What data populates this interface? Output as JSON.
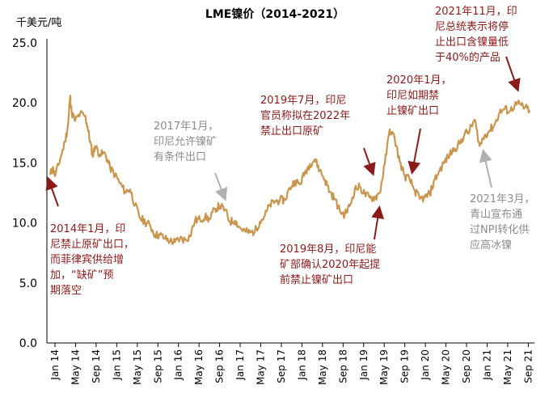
{
  "chart_data": {
    "type": "line",
    "title": "LME镍价（2014-2021）",
    "ylabel": "千美元/吨",
    "xlabel": "",
    "ylim": [
      0,
      25
    ],
    "yticks": [
      "0.0",
      "5.0",
      "10.0",
      "15.0",
      "20.0",
      "25.0"
    ],
    "xticks": [
      "Jan 14",
      "May 14",
      "Sep 14",
      "Jan 15",
      "May 15",
      "Sep 15",
      "Jan 16",
      "May 16",
      "Sep 16",
      "Jan 17",
      "May 17",
      "Sep 17",
      "Jan 18",
      "May 18",
      "Sep 18",
      "Jan 19",
      "May 19",
      "Sep 19",
      "Jan 20",
      "May 20",
      "Sep 20",
      "Jan 21",
      "May 21",
      "Sep 21"
    ],
    "grid": false,
    "series": [
      {
        "name": "LME镍价",
        "color": "#C8964E",
        "points": [
          [
            0,
            14.0
          ],
          [
            0.5,
            14.6
          ],
          [
            1.0,
            13.9
          ],
          [
            2.0,
            15.3
          ],
          [
            3.0,
            16.8
          ],
          [
            3.6,
            18.2
          ],
          [
            4.0,
            20.6
          ],
          [
            4.3,
            19.2
          ],
          [
            5.0,
            18.5
          ],
          [
            6.0,
            19.1
          ],
          [
            7.0,
            18.9
          ],
          [
            7.5,
            18.0
          ],
          [
            8.0,
            16.8
          ],
          [
            8.5,
            15.6
          ],
          [
            9.0,
            16.4
          ],
          [
            10.0,
            15.7
          ],
          [
            11.0,
            15.8
          ],
          [
            12.0,
            14.6
          ],
          [
            13.0,
            14.0
          ],
          [
            14.0,
            13.3
          ],
          [
            15.0,
            12.6
          ],
          [
            16.0,
            12.8
          ],
          [
            17.0,
            11.5
          ],
          [
            18.0,
            10.4
          ],
          [
            19.0,
            10.1
          ],
          [
            20.0,
            9.8
          ],
          [
            21.0,
            9.0
          ],
          [
            22.0,
            9.0
          ],
          [
            23.0,
            8.7
          ],
          [
            24.0,
            8.5
          ],
          [
            25.0,
            8.4
          ],
          [
            26.0,
            8.7
          ],
          [
            27.0,
            8.6
          ],
          [
            28.0,
            8.9
          ],
          [
            29.0,
            10.2
          ],
          [
            30.0,
            10.3
          ],
          [
            31.0,
            10.5
          ],
          [
            32.0,
            10.3
          ],
          [
            33.0,
            11.2
          ],
          [
            34.0,
            11.4
          ],
          [
            35.0,
            11.1
          ],
          [
            36.0,
            10.1
          ],
          [
            37.0,
            10.2
          ],
          [
            38.0,
            9.6
          ],
          [
            39.0,
            9.3
          ],
          [
            40.0,
            9.2
          ],
          [
            41.0,
            9.3
          ],
          [
            42.0,
            10.1
          ],
          [
            43.0,
            10.6
          ],
          [
            44.0,
            11.5
          ],
          [
            45.0,
            11.8
          ],
          [
            46.0,
            11.9
          ],
          [
            47.0,
            11.9
          ],
          [
            48.0,
            12.9
          ],
          [
            49.0,
            13.5
          ],
          [
            50.0,
            13.2
          ],
          [
            51.0,
            14.2
          ],
          [
            52.0,
            14.9
          ],
          [
            53.0,
            15.3
          ],
          [
            54.0,
            14.4
          ],
          [
            55.0,
            13.6
          ],
          [
            56.0,
            12.6
          ],
          [
            57.0,
            12.0
          ],
          [
            58.0,
            11.0
          ],
          [
            59.0,
            10.7
          ],
          [
            60.0,
            11.4
          ],
          [
            61.0,
            12.8
          ],
          [
            62.0,
            13.0
          ],
          [
            63.0,
            12.4
          ],
          [
            64.0,
            12.1
          ],
          [
            65.0,
            12.1
          ],
          [
            66.0,
            12.5
          ],
          [
            67.0,
            14.9
          ],
          [
            68.0,
            17.8
          ],
          [
            69.0,
            17.0
          ],
          [
            70.0,
            15.1
          ],
          [
            71.0,
            13.9
          ],
          [
            72.0,
            13.6
          ],
          [
            73.0,
            12.7
          ],
          [
            74.0,
            12.0
          ],
          [
            75.0,
            12.1
          ],
          [
            76.0,
            12.4
          ],
          [
            77.0,
            13.6
          ],
          [
            78.0,
            14.4
          ],
          [
            79.0,
            15.1
          ],
          [
            80.0,
            15.7
          ],
          [
            81.0,
            16.2
          ],
          [
            82.0,
            16.6
          ],
          [
            83.0,
            17.4
          ],
          [
            84.0,
            17.7
          ],
          [
            85.0,
            18.6
          ],
          [
            86.0,
            16.4
          ],
          [
            87.0,
            17.3
          ],
          [
            88.0,
            17.7
          ],
          [
            89.0,
            18.2
          ],
          [
            90.0,
            19.2
          ],
          [
            91.0,
            19.5
          ],
          [
            92.0,
            19.3
          ],
          [
            93.0,
            19.8
          ],
          [
            94.0,
            19.9
          ],
          [
            95.0,
            19.6
          ],
          [
            96.0,
            19.4
          ]
        ]
      }
    ],
    "annotations": [
      {
        "id": "a2014",
        "color": "red",
        "lines": [
          "2014年1月，印",
          "尼禁止原矿出口，",
          "而菲律宾供给增",
          "加，“缺矿”预",
          "期落空"
        ]
      },
      {
        "id": "a2017",
        "color": "gray",
        "lines": [
          "2017年1月，",
          "印尼允许镍矿",
          "有条件出口"
        ]
      },
      {
        "id": "a2019jul",
        "color": "red",
        "lines": [
          "2019年7月，印尼",
          "官员称拟在2022年",
          "禁止出口原矿"
        ]
      },
      {
        "id": "a2019aug",
        "color": "red",
        "lines": [
          "2019年8月，印尼能",
          "矿部确认2020年起提",
          "前禁止镍矿出口"
        ]
      },
      {
        "id": "a2020",
        "color": "red",
        "lines": [
          "2020年1月，",
          "印尼如期禁",
          "止镍矿出口"
        ]
      },
      {
        "id": "a2021nov",
        "color": "red",
        "lines": [
          "2021年11月，印",
          "尼总统表示将停",
          "止出口含镍量低",
          "于40%的产品"
        ]
      },
      {
        "id": "a2021mar",
        "color": "gray",
        "lines": [
          "2021年3月，",
          "青山宣布通",
          "过NPI转化供",
          "应高冰镍"
        ]
      }
    ]
  }
}
